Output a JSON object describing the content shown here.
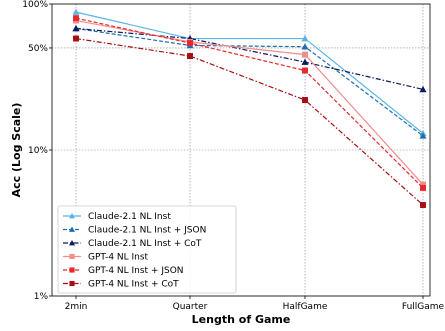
{
  "chart_data": {
    "type": "line",
    "title": "",
    "xlabel": "Length of Game",
    "ylabel": "Acc (Log Scale)",
    "y_scale": "log",
    "grid": true,
    "legend_position": "lower-left",
    "categories": [
      "2min",
      "Quarter",
      "HalfGame",
      "FullGame"
    ],
    "y_ticks": [
      1,
      10,
      50,
      100
    ],
    "y_tick_labels": [
      "1%",
      "10%",
      "50%",
      "100%"
    ],
    "ylim": [
      1,
      100
    ],
    "series": [
      {
        "name": "Claude-2.1 NL Inst",
        "values": [
          88,
          58,
          58,
          13
        ],
        "color": "#5ab4e5",
        "dash": "solid",
        "marker": "triangle"
      },
      {
        "name": "Claude-2.1 NL Inst + JSON",
        "values": [
          68,
          52,
          51,
          12.5
        ],
        "color": "#1f6fae",
        "dash": "dashed",
        "marker": "triangle"
      },
      {
        "name": "Claude-2.1 NL Inst + CoT",
        "values": [
          68,
          58,
          40,
          26
        ],
        "color": "#0c1a5e",
        "dash": "dashdot",
        "marker": "triangle"
      },
      {
        "name": "GPT-4 NL Inst",
        "values": [
          77,
          55,
          45,
          5.8
        ],
        "color": "#f08e8e",
        "dash": "solid",
        "marker": "square"
      },
      {
        "name": "GPT-4 NL Inst + JSON",
        "values": [
          80,
          54,
          35,
          5.5
        ],
        "color": "#e8282b",
        "dash": "dashed",
        "marker": "square"
      },
      {
        "name": "GPT-4 NL Inst + CoT",
        "values": [
          58,
          44,
          22,
          4.2
        ],
        "color": "#a50f15",
        "dash": "dashdot",
        "marker": "square"
      }
    ]
  }
}
